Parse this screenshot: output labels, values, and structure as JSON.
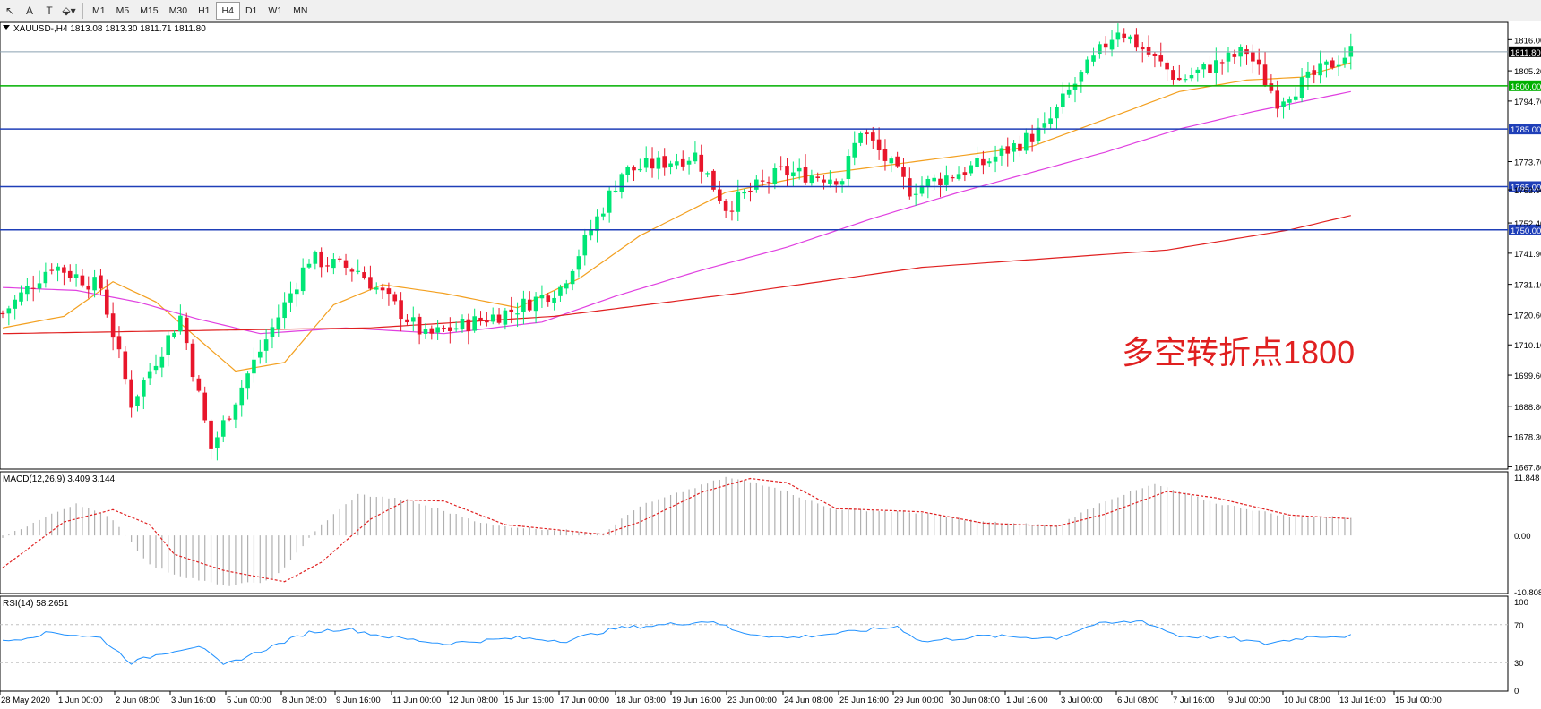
{
  "toolbar": {
    "tools": [
      {
        "name": "cursor-icon",
        "glyph": "↖"
      },
      {
        "name": "text-tool-icon",
        "glyph": "A"
      },
      {
        "name": "text-label-tool-icon",
        "glyph": "T"
      },
      {
        "name": "shapes-menu-icon",
        "glyph": "⬙▾"
      }
    ],
    "timeframes": [
      "M1",
      "M5",
      "M15",
      "M30",
      "H1",
      "H4",
      "D1",
      "W1",
      "MN"
    ],
    "active_timeframe": "H4"
  },
  "chart_data": [
    {
      "type": "candlestick",
      "title": "XAUUSD-,H4  1813.08 1813.30 1811.71 1811.80",
      "last_price_label": "1811.80",
      "y_ticks": [
        "1816.00",
        "1805.20",
        "1794.70",
        "1773.70",
        "1763.90",
        "1752.40",
        "1741.90",
        "1731.10",
        "1720.60",
        "1710.10",
        "1699.60",
        "1688.80",
        "1678.30",
        "1667.80"
      ],
      "ylim": [
        1667.0,
        1822.0
      ],
      "x_tick_labels": [
        "28 May 2020",
        "1 Jun 00:00",
        "2 Jun 08:00",
        "3 Jun 16:00",
        "5 Jun 00:00",
        "8 Jun 08:00",
        "9 Jun 16:00",
        "11 Jun 00:00",
        "12 Jun 08:00",
        "15 Jun 16:00",
        "17 Jun 00:00",
        "18 Jun 08:00",
        "19 Jun 16:00",
        "23 Jun 00:00",
        "24 Jun 08:00",
        "25 Jun 16:00",
        "29 Jun 00:00",
        "30 Jun 08:00",
        "1 Jul 16:00",
        "3 Jul 00:00",
        "6 Jul 08:00",
        "7 Jul 16:00",
        "9 Jul 00:00",
        "10 Jul 08:00",
        "13 Jul 16:00",
        "15 Jul 00:00"
      ],
      "horizontal_levels": [
        {
          "value": 1800.0,
          "label": "1800.00",
          "color": "#00b000"
        },
        {
          "value": 1785.0,
          "label": "1785.00",
          "color": "#1f3fb8"
        },
        {
          "value": 1765.0,
          "label": "1765.00",
          "color": "#1f3fb8"
        },
        {
          "value": 1750.0,
          "label": "1750.00",
          "color": "#1f3fb8"
        }
      ],
      "price_path_keypoints": [
        [
          0,
          1721
        ],
        [
          8,
          1738
        ],
        [
          16,
          1730
        ],
        [
          21,
          1690
        ],
        [
          29,
          1720
        ],
        [
          34,
          1674
        ],
        [
          40,
          1700
        ],
        [
          50,
          1740
        ],
        [
          58,
          1736
        ],
        [
          69,
          1713
        ],
        [
          83,
          1722
        ],
        [
          91,
          1730
        ],
        [
          101,
          1770
        ],
        [
          113,
          1776
        ],
        [
          118,
          1758
        ],
        [
          127,
          1770
        ],
        [
          137,
          1768
        ],
        [
          140,
          1785
        ],
        [
          148,
          1764
        ],
        [
          160,
          1773
        ],
        [
          170,
          1785
        ],
        [
          174,
          1798
        ],
        [
          182,
          1820
        ],
        [
          192,
          1802
        ],
        [
          203,
          1812
        ],
        [
          208,
          1795
        ],
        [
          220,
          1812
        ]
      ],
      "moving_averages": [
        {
          "color": "#f3a020",
          "points": [
            [
              0,
              1716
            ],
            [
              10,
              1720
            ],
            [
              18,
              1732
            ],
            [
              25,
              1725
            ],
            [
              32,
              1712
            ],
            [
              38,
              1701
            ],
            [
              46,
              1704
            ],
            [
              54,
              1724
            ],
            [
              62,
              1731
            ],
            [
              72,
              1728
            ],
            [
              84,
              1723
            ],
            [
              94,
              1733
            ],
            [
              104,
              1748
            ],
            [
              118,
              1763
            ],
            [
              132,
              1769
            ],
            [
              150,
              1774
            ],
            [
              168,
              1779
            ],
            [
              182,
              1790
            ],
            [
              192,
              1798
            ],
            [
              203,
              1802
            ],
            [
              212,
              1803
            ],
            [
              220,
              1808
            ]
          ]
        },
        {
          "color": "#e040e0",
          "points": [
            [
              0,
              1730
            ],
            [
              12,
              1729
            ],
            [
              22,
              1725
            ],
            [
              32,
              1719
            ],
            [
              42,
              1714
            ],
            [
              56,
              1716
            ],
            [
              72,
              1714
            ],
            [
              88,
              1718
            ],
            [
              100,
              1727
            ],
            [
              114,
              1736
            ],
            [
              128,
              1744
            ],
            [
              142,
              1754
            ],
            [
              156,
              1763
            ],
            [
              168,
              1770
            ],
            [
              180,
              1777
            ],
            [
              192,
              1785
            ],
            [
              204,
              1791
            ],
            [
              220,
              1798
            ]
          ]
        },
        {
          "color": "#e02020",
          "points": [
            [
              0,
              1714
            ],
            [
              30,
              1715
            ],
            [
              60,
              1716
            ],
            [
              90,
              1720
            ],
            [
              120,
              1728
            ],
            [
              150,
              1737
            ],
            [
              170,
              1740
            ],
            [
              190,
              1743
            ],
            [
              210,
              1750
            ],
            [
              220,
              1755
            ]
          ]
        }
      ],
      "annotation": {
        "text": "多空转折点1800",
        "color": "#e02020"
      }
    },
    {
      "type": "histogram",
      "title": "MACD(12,26,9) 3.409 3.144",
      "y_ticks": [
        "11.848",
        "0.00",
        "-10.808"
      ],
      "ylim": [
        -10.808,
        11.848
      ],
      "macd_keypoints": [
        [
          0,
          -0.3
        ],
        [
          12,
          6.0
        ],
        [
          18,
          3.0
        ],
        [
          24,
          -5.5
        ],
        [
          28,
          -7.2
        ],
        [
          36,
          -9.4
        ],
        [
          44,
          -8.4
        ],
        [
          52,
          2.0
        ],
        [
          58,
          7.6
        ],
        [
          66,
          6.6
        ],
        [
          80,
          1.8
        ],
        [
          98,
          0.5
        ],
        [
          104,
          5.5
        ],
        [
          118,
          10.8
        ],
        [
          126,
          9.0
        ],
        [
          135,
          5.0
        ],
        [
          150,
          4.2
        ],
        [
          160,
          2.5
        ],
        [
          172,
          1.8
        ],
        [
          180,
          6.5
        ],
        [
          188,
          9.5
        ],
        [
          198,
          6.0
        ],
        [
          210,
          3.5
        ],
        [
          220,
          3.4
        ]
      ],
      "signal_keypoints": [
        [
          0,
          -6.0
        ],
        [
          10,
          2.5
        ],
        [
          18,
          4.8
        ],
        [
          24,
          2.0
        ],
        [
          28,
          -3.5
        ],
        [
          36,
          -6.5
        ],
        [
          46,
          -8.6
        ],
        [
          52,
          -5.0
        ],
        [
          60,
          3.0
        ],
        [
          66,
          6.6
        ],
        [
          72,
          6.4
        ],
        [
          82,
          2.0
        ],
        [
          98,
          0.2
        ],
        [
          104,
          2.5
        ],
        [
          114,
          8.0
        ],
        [
          122,
          10.6
        ],
        [
          128,
          9.8
        ],
        [
          136,
          5.0
        ],
        [
          150,
          4.4
        ],
        [
          160,
          2.3
        ],
        [
          172,
          1.7
        ],
        [
          180,
          4.0
        ],
        [
          190,
          8.2
        ],
        [
          198,
          7.0
        ],
        [
          210,
          3.8
        ],
        [
          220,
          3.1
        ]
      ]
    },
    {
      "type": "line",
      "title": "RSI(14) 58.2651",
      "y_ticks": [
        "100",
        "70",
        "30",
        "0"
      ],
      "ylim": [
        0,
        100
      ],
      "rsi_keypoints": [
        [
          0,
          52
        ],
        [
          8,
          62
        ],
        [
          16,
          56
        ],
        [
          21,
          30
        ],
        [
          26,
          40
        ],
        [
          32,
          48
        ],
        [
          36,
          27
        ],
        [
          42,
          42
        ],
        [
          50,
          62
        ],
        [
          56,
          66
        ],
        [
          62,
          58
        ],
        [
          72,
          50
        ],
        [
          84,
          56
        ],
        [
          92,
          53
        ],
        [
          100,
          66
        ],
        [
          108,
          70
        ],
        [
          116,
          74
        ],
        [
          120,
          62
        ],
        [
          128,
          56
        ],
        [
          138,
          62
        ],
        [
          146,
          68
        ],
        [
          150,
          52
        ],
        [
          160,
          58
        ],
        [
          172,
          56
        ],
        [
          178,
          70
        ],
        [
          186,
          74
        ],
        [
          192,
          58
        ],
        [
          200,
          56
        ],
        [
          206,
          50
        ],
        [
          214,
          58
        ],
        [
          220,
          58
        ]
      ]
    }
  ]
}
